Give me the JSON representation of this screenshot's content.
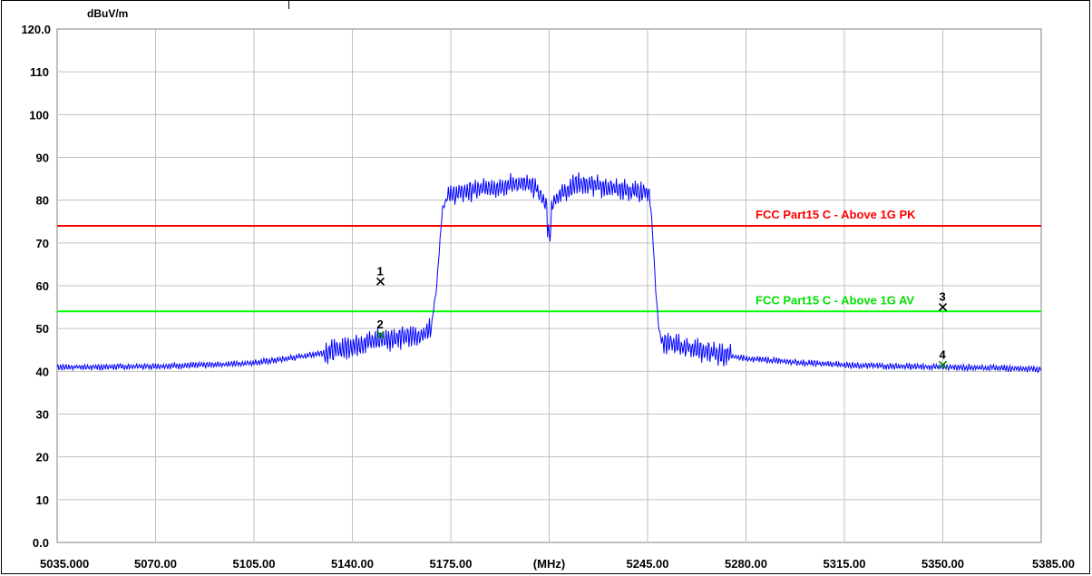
{
  "chart_data": {
    "type": "line",
    "ylabel": "dBuV/m",
    "xunit_label": "(MHz)",
    "xlim": [
      5035,
      5385
    ],
    "ylim": [
      0,
      120
    ],
    "grid": true,
    "y_ticks": [
      {
        "value": 120,
        "label": "120.0"
      },
      {
        "value": 110,
        "label": "110"
      },
      {
        "value": 100,
        "label": "100"
      },
      {
        "value": 90,
        "label": "90"
      },
      {
        "value": 80,
        "label": "80"
      },
      {
        "value": 70,
        "label": "70"
      },
      {
        "value": 60,
        "label": "60"
      },
      {
        "value": 50,
        "label": "50"
      },
      {
        "value": 40,
        "label": "40"
      },
      {
        "value": 30,
        "label": "30"
      },
      {
        "value": 20,
        "label": "20"
      },
      {
        "value": 10,
        "label": "10"
      },
      {
        "value": 0,
        "label": "0.0"
      }
    ],
    "x_ticks": [
      {
        "value": 5035,
        "label": "5035.000"
      },
      {
        "value": 5070,
        "label": "5070.00"
      },
      {
        "value": 5105,
        "label": "5105.00"
      },
      {
        "value": 5140,
        "label": "5140.00"
      },
      {
        "value": 5175,
        "label": "5175.00"
      },
      {
        "value": 5210,
        "label": "(MHz)"
      },
      {
        "value": 5245,
        "label": "5245.00"
      },
      {
        "value": 5280,
        "label": "5280.00"
      },
      {
        "value": 5315,
        "label": "5315.00"
      },
      {
        "value": 5350,
        "label": "5350.00"
      },
      {
        "value": 5385,
        "label": "5385.00"
      }
    ],
    "limit_lines": [
      {
        "name": "FCC Part15 C - Above 1G PK",
        "value": 74,
        "color": "#ff0000"
      },
      {
        "name": "FCC Part15 C - Above 1G AV",
        "value": 54,
        "color": "#00ff00"
      }
    ],
    "series": [
      {
        "color": "#0000ff",
        "x": [
          5035,
          5050,
          5070,
          5090,
          5105,
          5115,
          5125,
          5135,
          5140,
          5150,
          5160,
          5165,
          5168,
          5170,
          5172,
          5174,
          5180,
          5190,
          5200,
          5205,
          5208,
          5210,
          5213,
          5220,
          5230,
          5240,
          5245,
          5246,
          5247,
          5248,
          5249,
          5250,
          5252,
          5255,
          5260,
          5270,
          5280,
          5290,
          5300,
          5315,
          5330,
          5350,
          5370,
          5385
        ],
        "y": [
          41,
          41,
          41.2,
          41.5,
          42,
          42.8,
          43.8,
          45,
          46,
          47.5,
          48,
          48.5,
          50,
          60,
          78,
          81,
          82,
          83,
          84,
          83,
          80,
          78,
          81,
          84,
          83,
          82,
          82,
          80,
          70,
          58,
          50,
          47,
          46.5,
          46,
          45.5,
          44,
          43,
          42.5,
          42,
          41.5,
          41.2,
          41,
          40.8,
          40.5
        ]
      }
    ],
    "markers": [
      {
        "label": "1",
        "x": 5150,
        "y": 61,
        "color": "#000000"
      },
      {
        "label": "2",
        "x": 5150,
        "y": 48.5,
        "color": "#008000"
      },
      {
        "label": "3",
        "x": 5350,
        "y": 55,
        "color": "#000000"
      },
      {
        "label": "4",
        "x": 5350,
        "y": 41.5,
        "color": "#008000"
      }
    ]
  }
}
